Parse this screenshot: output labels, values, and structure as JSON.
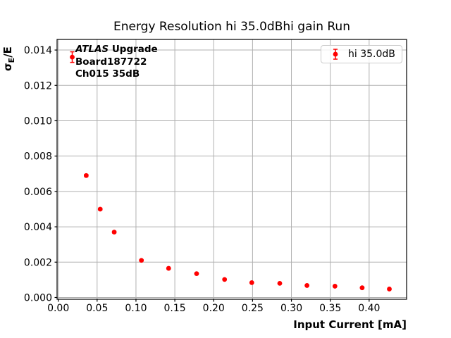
{
  "figure": {
    "title": "Energy Resolution hi 35.0dBhi gain Run",
    "annotation": {
      "line1_italic": "ATLAS",
      "line1_rest": " Upgrade",
      "line2": "Board187722",
      "line3": "Ch015 35dB"
    },
    "ylabel_parts": {
      "symbol": "σ",
      "subscript": "E",
      "suffix": "/E"
    },
    "legend": {
      "label": "hi 35.0dB"
    }
  },
  "chart_data": {
    "type": "scatter",
    "title": "Energy Resolution hi 35.0dBhi gain Run",
    "xlabel": "Input Current [mA]",
    "ylabel": "σ_E/E",
    "grid": true,
    "grid_color": "#b0b0b0",
    "legend_position": "upper right",
    "xlim": [
      -0.0015,
      0.4482
    ],
    "ylim": [
      -0.0001,
      0.0146
    ],
    "xticks": [
      {
        "v": 0.0,
        "label": "0.00"
      },
      {
        "v": 0.05,
        "label": "0.05"
      },
      {
        "v": 0.1,
        "label": "0.10"
      },
      {
        "v": 0.15,
        "label": "0.15"
      },
      {
        "v": 0.2,
        "label": "0.20"
      },
      {
        "v": 0.25,
        "label": "0.25"
      },
      {
        "v": 0.3,
        "label": "0.30"
      },
      {
        "v": 0.35,
        "label": "0.35"
      },
      {
        "v": 0.4,
        "label": "0.40"
      }
    ],
    "yticks": [
      {
        "v": 0.0,
        "label": "0.000"
      },
      {
        "v": 0.002,
        "label": "0.002"
      },
      {
        "v": 0.004,
        "label": "0.004"
      },
      {
        "v": 0.006,
        "label": "0.006"
      },
      {
        "v": 0.008,
        "label": "0.008"
      },
      {
        "v": 0.01,
        "label": "0.010"
      },
      {
        "v": 0.012,
        "label": "0.012"
      },
      {
        "v": 0.014,
        "label": "0.014"
      }
    ],
    "series": [
      {
        "name": "hi 35.0dB",
        "color": "#ff0000",
        "marker": "circle",
        "x": [
          0.018,
          0.036,
          0.054,
          0.072,
          0.107,
          0.142,
          0.178,
          0.214,
          0.249,
          0.285,
          0.32,
          0.356,
          0.391,
          0.426
        ],
        "y": [
          0.0136,
          0.0069,
          0.005,
          0.0037,
          0.0021,
          0.00165,
          0.00135,
          0.00102,
          0.00084,
          0.0008,
          0.00068,
          0.00064,
          0.00055,
          0.00048
        ],
        "yerr": [
          0.0003,
          6e-05,
          5e-05,
          5e-05,
          4e-05,
          3e-05,
          3e-05,
          2e-05,
          2e-05,
          2e-05,
          2e-05,
          2e-05,
          2e-05,
          2e-05
        ]
      }
    ]
  }
}
